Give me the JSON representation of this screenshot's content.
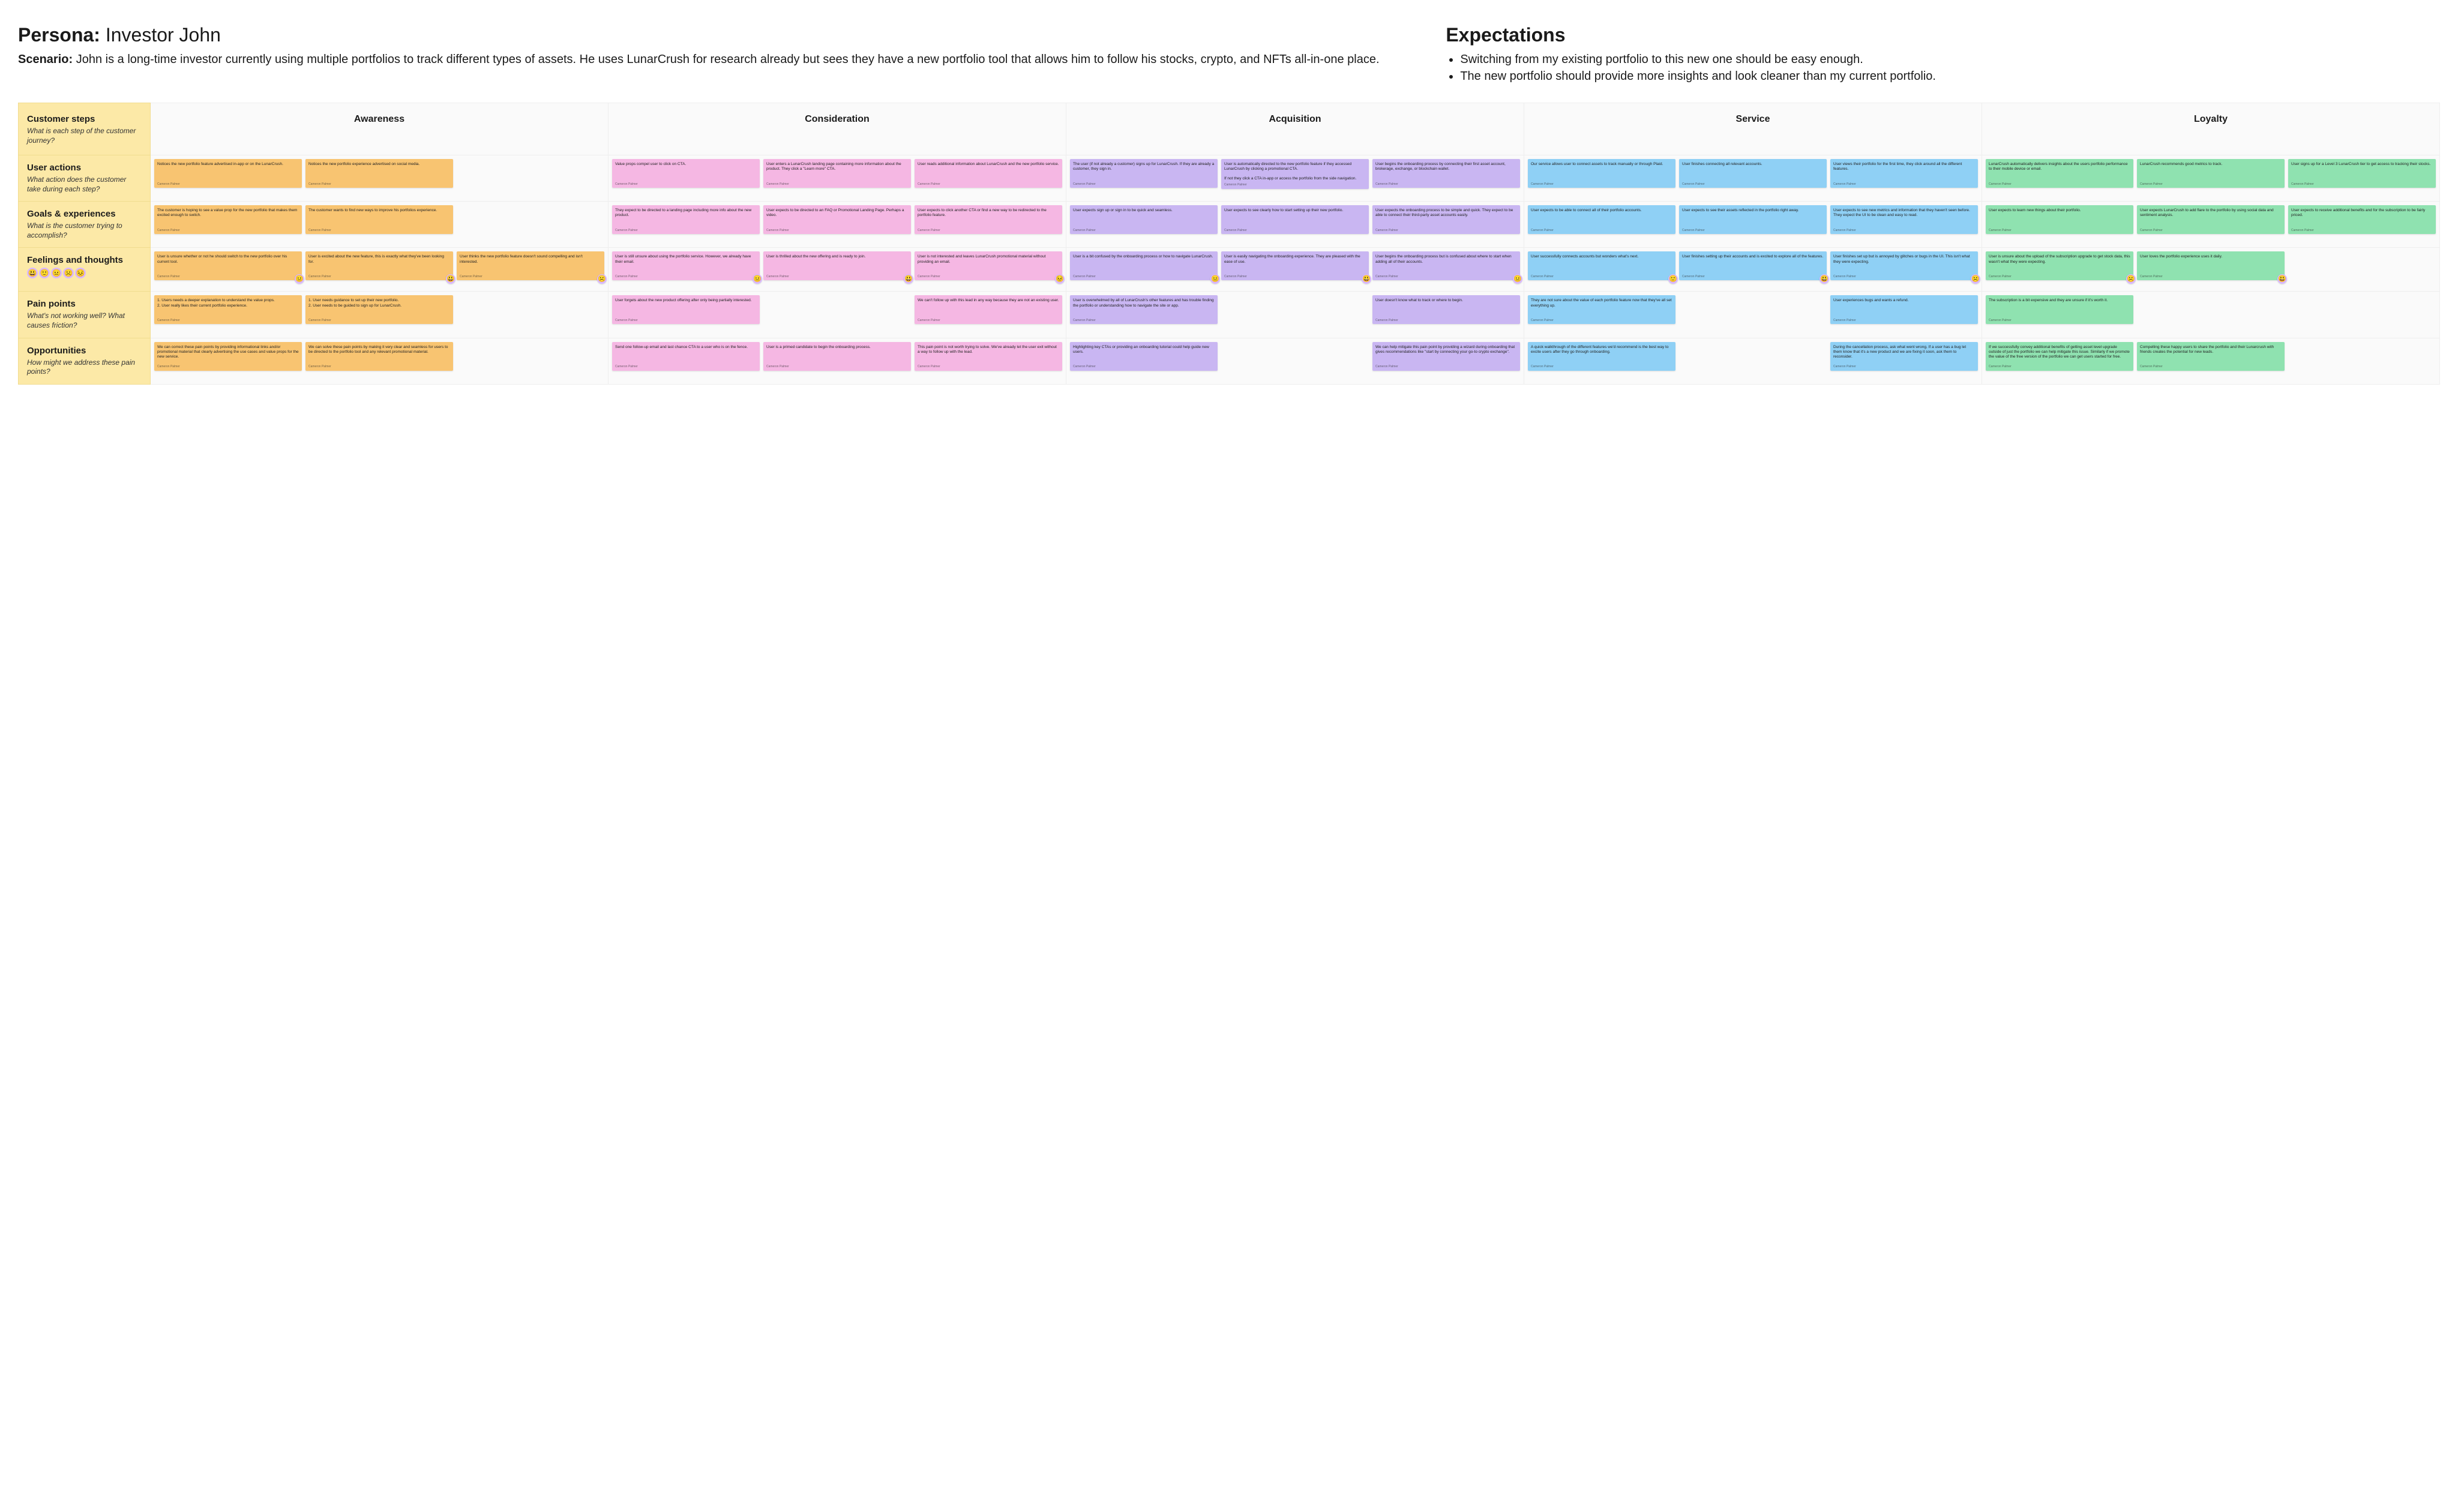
{
  "persona": {
    "label": "Persona:",
    "name": "Investor John"
  },
  "scenario": {
    "label": "Scenario:",
    "text": "John is a long-time investor currently using multiple portfolios to track different types of assets. He uses LunarCrush for research already but sees they have a new portfolio tool that allows him to follow his stocks, crypto, and NFTs all-in-one place."
  },
  "expectations": {
    "title": "Expectations",
    "items": [
      "Switching from my existing portfolio to this new one should be easy enough.",
      "The new portfolio should provide more insights and look cleaner than my current portfolio."
    ]
  },
  "stages": [
    "Awareness",
    "Consideration",
    "Acquisition",
    "Service",
    "Loyalty"
  ],
  "colors": {
    "Awareness": "#f8c471",
    "Consideration": "#f5b7e3",
    "Acquisition": "#c9b6f2",
    "Service": "#8fd0f5",
    "Loyalty": "#8fe2b0"
  },
  "footer_text": "Cameron Palmer",
  "rows": [
    {
      "id": "steps",
      "title": "Customer steps",
      "sub": "What is each step of the customer journey?",
      "isHeader": true
    },
    {
      "id": "actions",
      "title": "User actions",
      "sub": "What action does the customer take during each step?"
    },
    {
      "id": "goals",
      "title": "Goals & experiences",
      "sub": "What is the customer trying to accomplish?"
    },
    {
      "id": "feelings",
      "title": "Feelings and thoughts",
      "sub": "",
      "emojis": [
        "😃",
        "🙂",
        "😐",
        "☹️",
        "😣"
      ]
    },
    {
      "id": "pain",
      "title": "Pain points",
      "sub": "What's not working well? What causes friction?"
    },
    {
      "id": "opps",
      "title": "Opportunities",
      "sub": "How might we address these pain points?"
    }
  ],
  "matrix": {
    "actions": {
      "Awareness": [
        "Notices the new portfolio feature advertised in-app or on the LunarCrush.",
        "Notices the new portfolio experience advertised on social media.",
        null
      ],
      "Consideration": [
        "Value props compel user to click on CTA.",
        "User enters a LunarCrush landing page containing more information about the product. They click a \"Learn more\" CTA.",
        "User reads additional information about LunarCrush and the new portfolio service."
      ],
      "Acquisition": [
        "The user (if not already a customer) signs up for LunarCrush. If they are already a customer, they sign in.",
        "User is automatically directed to the new portfolio feature if they accessed LunarCrush by clicking a promotional CTA.\n\nIf not they click a CTA in-app or access the portfolio from the side navigation.",
        "User begins the onboarding process by connecting their first asset account, brokerage, exchange, or blockchain wallet."
      ],
      "Service": [
        "Our service allows user to connect assets to track manually or through Plaid.",
        "User finishes connecting all relevant accounts.",
        "User views their portfolio for the first time, they click around all the different features."
      ],
      "Loyalty": [
        "LunarCrush automatically delivers insights about the users portfolio performance to their mobile device or email.",
        "LunarCrush recommends good metrics to track.",
        "User signs up for a Level 3 LunarCrush tier to get access to tracking their stocks."
      ]
    },
    "goals": {
      "Awareness": [
        "The customer is hoping to see a value prop for the new portfolio that makes them excited enough to switch.",
        "The customer wants to find new ways to improve his portfolios experience.",
        null
      ],
      "Consideration": [
        "They expect to be directed to a landing page including more info about the new product.",
        "User expects to be directed to an FAQ or Promotional Landing Page. Perhaps a video.",
        "User expects to click another CTA or find a new way to be redirected to the portfolio feature."
      ],
      "Acquisition": [
        "User expects sign up or sign in to be quick and seamless.",
        "User expects to see clearly how to start setting up their new portfolio.",
        "User expects the onboarding process to be simple and quick. They expect to be able to connect their third-party asset accounts easily."
      ],
      "Service": [
        "User expects to be able to connect all of their portfolio accounts.",
        "User expects to see their assets reflected in the portfolio right away.",
        "User expects to see new metrics and information that they haven't seen before. They expect the UI to be clean and easy to read."
      ],
      "Loyalty": [
        "User expects to learn new things about their portfolio.",
        "User expects LunarCrush to add flare to the portfolio by using social data and sentiment analysis.",
        "User expects to receive additional benefits and for the subscription to be fairly priced."
      ]
    },
    "feelings": {
      "Awareness": [
        {
          "t": "User is unsure whether or not he should switch to the new portfolio over his current tool.",
          "e": "😐"
        },
        {
          "t": "User is excited about the new feature, this is exactly what they've been looking for.",
          "e": "😃"
        },
        {
          "t": "User thinks the new portfolio feature doesn't sound compelling and isn't interested.",
          "e": "☹️"
        }
      ],
      "Consideration": [
        {
          "t": "User is still unsure about using the portfolio service. However, we already have their email.",
          "e": "😐"
        },
        {
          "t": "User is thrilled about the new offering and is ready to join.",
          "e": "😃"
        },
        {
          "t": "User is not interested and leaves LunarCrush promotional material without providing an email.",
          "e": "😣"
        }
      ],
      "Acquisition": [
        {
          "t": "User is a bit confused by the onboarding process or how to navigate LunarCrush.",
          "e": "😐"
        },
        {
          "t": "User is easily navigating the onboarding experience. They are pleased with the ease of use.",
          "e": "😃"
        },
        {
          "t": "User begins the onboarding process but is confused about where to start when adding all of their accounts.",
          "e": "😐"
        }
      ],
      "Service": [
        {
          "t": "User successfully connects accounts but wonders what's next.",
          "e": "🙂"
        },
        {
          "t": "User finishes setting up their accounts and is excited to explore all of the features.",
          "e": "😃"
        },
        {
          "t": "User finishes set up but is annoyed by glitches or bugs in the UI. This isn't what they were expecting.",
          "e": "☹️"
        }
      ],
      "Loyalty": [
        {
          "t": "User is unsure about the upload of the subscription upgrade to get stock data, this wasn't what they were expecting.",
          "e": "☹️"
        },
        {
          "t": "User loves the portfolio experience uses it daily.",
          "e": "😃"
        },
        null
      ]
    },
    "pain": {
      "Awareness": [
        "1. Users needs a deeper explanation to understand the value props.\n2. User really likes their current portfolio experience.",
        "1. User needs guidance to set up their new portfolio.\n2. User needs to be guided to sign up for LunarCrush.",
        null
      ],
      "Consideration": [
        "User forgets about the new product offering after only being partially interested.",
        null,
        "We can't follow up with this lead in any way because they are not an existing user."
      ],
      "Acquisition": [
        "User is overwhelmed by all of LunarCrush's other features and has trouble finding the portfolio or understanding how to navigate the site or app.",
        null,
        "User doesn't know what to track or where to begin."
      ],
      "Service": [
        "They are not sure about the value of each portfolio feature now that they've all set everything up.",
        null,
        "User experiences bugs and wants a refund."
      ],
      "Loyalty": [
        "The subscription is a bit expensive and they are unsure if it's worth it.",
        null,
        null
      ]
    },
    "opps": {
      "Awareness": [
        "We can correct these pain points by providing informational links and/or promotional material that clearly advertising the use cases and value props for the new service.",
        "We can solve these pain points by making it very clear and seamless for users to be directed to the portfolio tool and any relevant promotional material.",
        null
      ],
      "Consideration": [
        "Send one follow-up email and last chance CTA to a user who is on the fence.",
        "User is a primed candidate to begin the onboarding process.",
        "This pain point is not worth trying to solve. We've already let the user exit without a way to follow up with the lead."
      ],
      "Acquisition": [
        "Highlighting key CTAs or providing an onboarding tutorial could help guide new users.",
        null,
        "We can help mitigate this pain point by providing a wizard during onboarding that gives recommendations like \"start by connecting your go-to crypto exchange\"."
      ],
      "Service": [
        "A quick walkthrough of the different features we'd recommend is the best way to excite users after they go through onboarding.",
        null,
        "During the cancellation process, ask what went wrong. If a user has a bug let them know that it's a new product and we are fixing it soon, ask them to reconsider."
      ],
      "Loyalty": [
        "If we successfully convey additional benefits of getting asset level upgrade outside of just the portfolio we can help mitigate this issue. Similarly if we promote the value of the free version of the portfolio we can get users started for free.",
        "Compelling these happy users to share the portfolio and their Lunarcrush with friends creates the potential for new leads.",
        null
      ]
    }
  }
}
